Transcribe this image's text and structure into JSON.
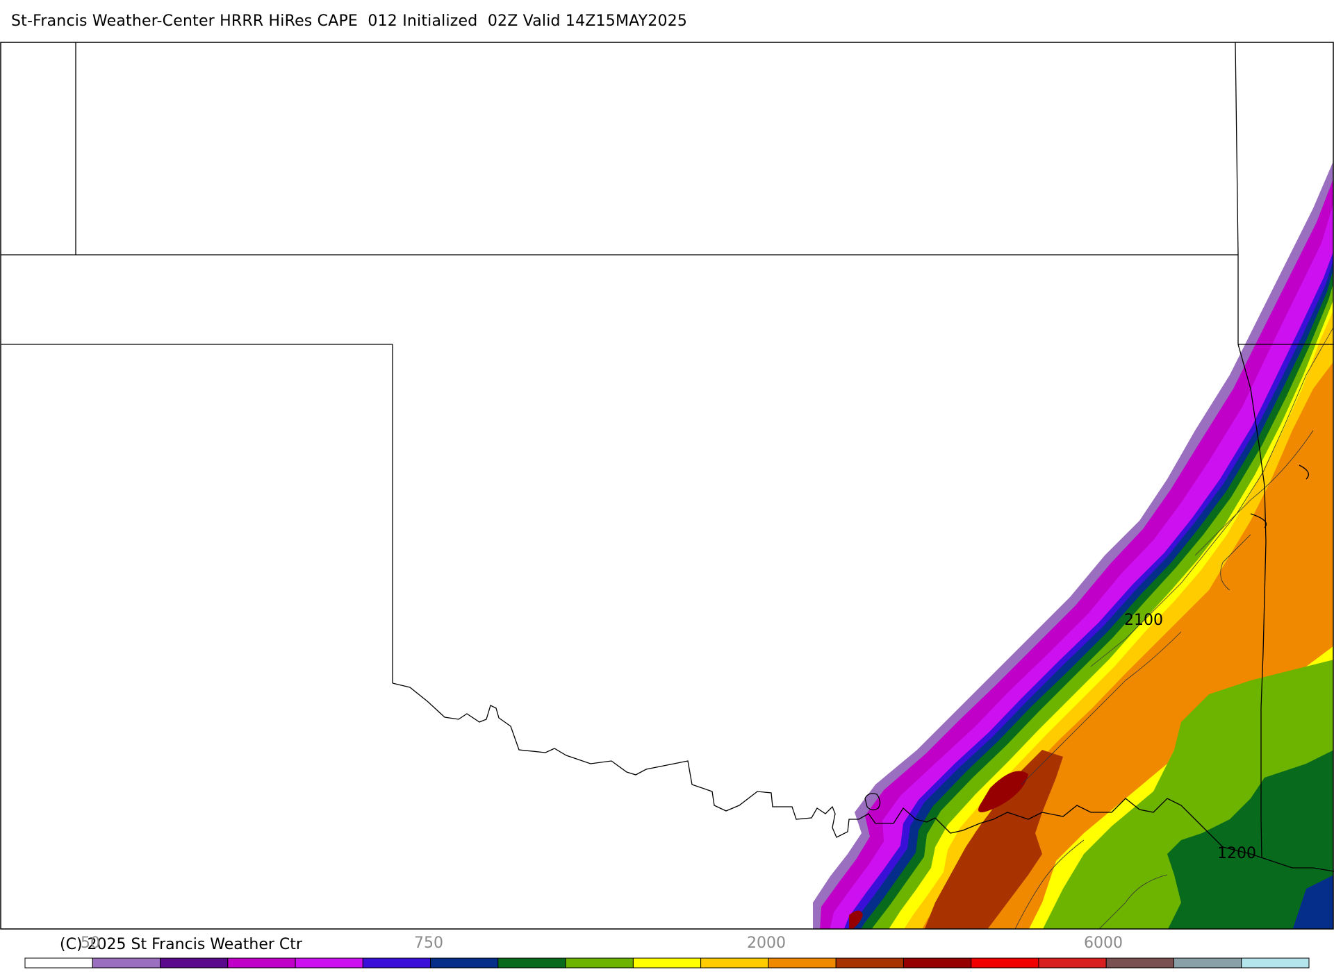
{
  "title": "St-Francis Weather-Center HRRR HiRes CAPE  012 Initialized  02Z Valid 14Z15MAY2025",
  "contour_labels": [
    "2100",
    "1200"
  ],
  "legend": {
    "colors": [
      "#ffffff",
      "#9b6fbf",
      "#5a0a8c",
      "#c000c8",
      "#cc10f0",
      "#3a10d8",
      "#052d8a",
      "#086a1c",
      "#6cb400",
      "#ffff00",
      "#ffcc00",
      "#f08800",
      "#a83200",
      "#960000",
      "#f00000",
      "#d82020",
      "#7a5050",
      "#8aa0a8",
      "#b4e4ec"
    ],
    "tick_labels": [
      "50",
      "750",
      "2000",
      "6000"
    ]
  },
  "copyright": "(C) 2025 St Francis Weather Ctr"
}
